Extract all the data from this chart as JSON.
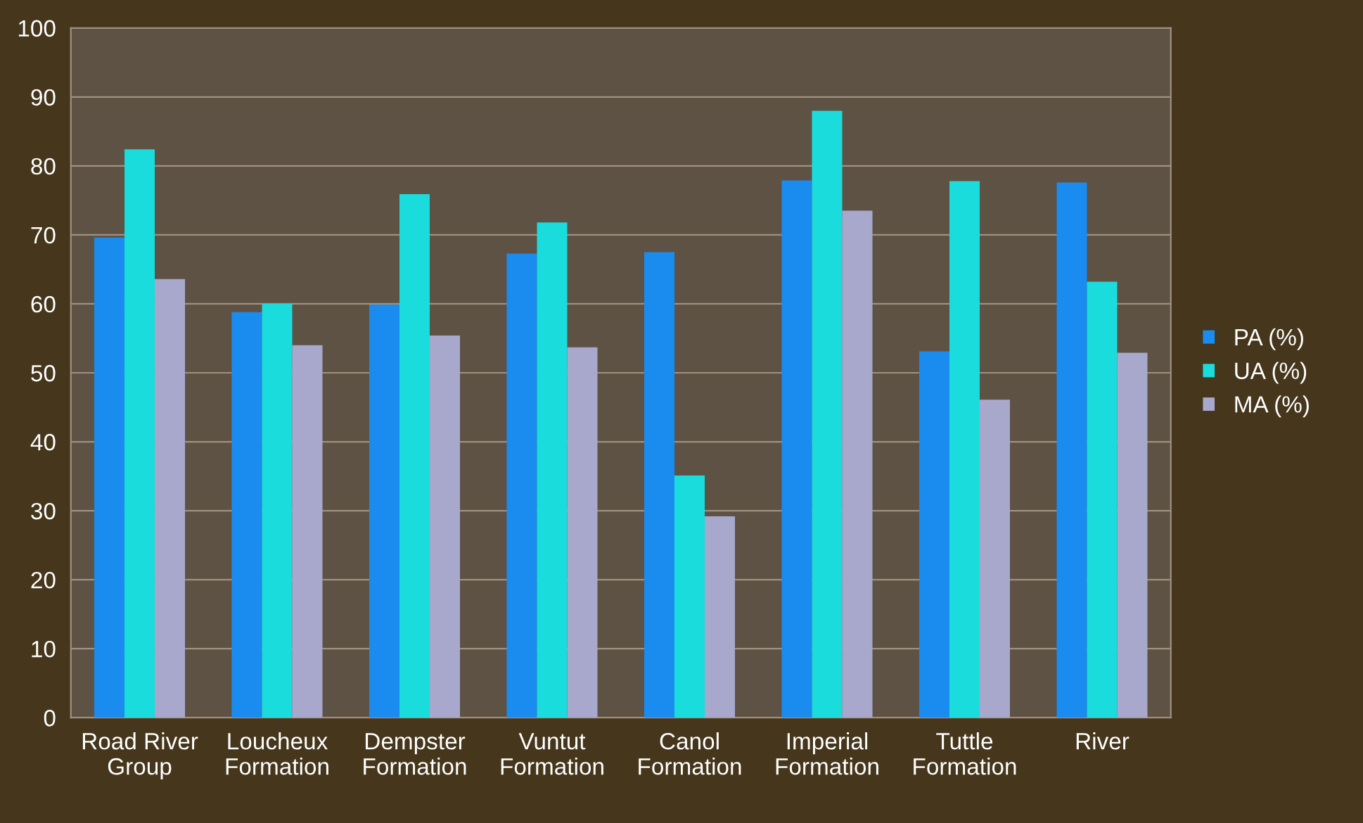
{
  "chart_data": {
    "type": "bar",
    "categories": [
      "Road River\nGroup",
      "Loucheux\nFormation",
      "Dempster\nFormation",
      "Vuntut\nFormation",
      "Canol\nFormation",
      "Imperial\nFormation",
      "Tuttle\nFormation",
      "River"
    ],
    "series": [
      {
        "name": "PA (%)",
        "color": "#1a8cf0",
        "values": [
          69.6,
          58.8,
          59.9,
          67.3,
          67.5,
          77.9,
          53.1,
          77.6
        ]
      },
      {
        "name": "UA (%)",
        "color": "#1adcdc",
        "values": [
          82.4,
          60.0,
          75.9,
          71.8,
          35.1,
          88.0,
          77.8,
          63.2
        ]
      },
      {
        "name": "MA (%)",
        "color": "#a8a8cc",
        "values": [
          63.6,
          54.0,
          55.4,
          53.7,
          29.2,
          73.5,
          46.1,
          52.9
        ]
      }
    ],
    "ylim": [
      0,
      100
    ],
    "yticks": [
      0,
      10,
      20,
      30,
      40,
      50,
      60,
      70,
      80,
      90,
      100
    ],
    "grid": "y",
    "legend": "right"
  }
}
